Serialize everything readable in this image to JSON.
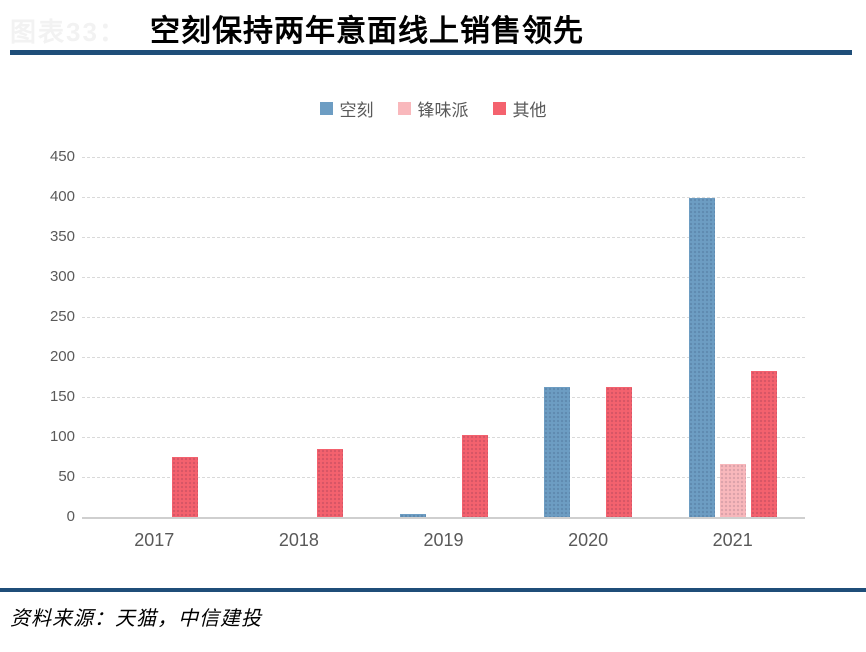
{
  "header": {
    "faint_label": "图表33：",
    "title": "空刻保持两年意面线上销售领先"
  },
  "footer": {
    "source": "资料来源：天猫，中信建投"
  },
  "colors": {
    "accent_rule": "#1f4e79",
    "axis_text": "#595959",
    "gridline": "#d9d9d9",
    "baseline": "#cfcfcf"
  },
  "chart_data": {
    "type": "bar",
    "title": "空刻保持两年意面线上销售领先",
    "categories": [
      "2017",
      "2018",
      "2019",
      "2020",
      "2021"
    ],
    "series": [
      {
        "key": "kongke",
        "name": "空刻",
        "color": "#6d9dc3",
        "values": [
          null,
          null,
          4,
          163,
          399
        ]
      },
      {
        "key": "fengweipai",
        "name": "锋味派",
        "color": "#f9b8bc",
        "values": [
          null,
          null,
          null,
          null,
          66
        ]
      },
      {
        "key": "qita",
        "name": "其他",
        "color": "#f4626e",
        "values": [
          75,
          85,
          103,
          162,
          182
        ]
      }
    ],
    "xlabel": "",
    "ylabel": "",
    "ylim": [
      0,
      450
    ],
    "ytick_step": 50,
    "grid": "horizontal-dashed",
    "legend_position": "top-center"
  }
}
